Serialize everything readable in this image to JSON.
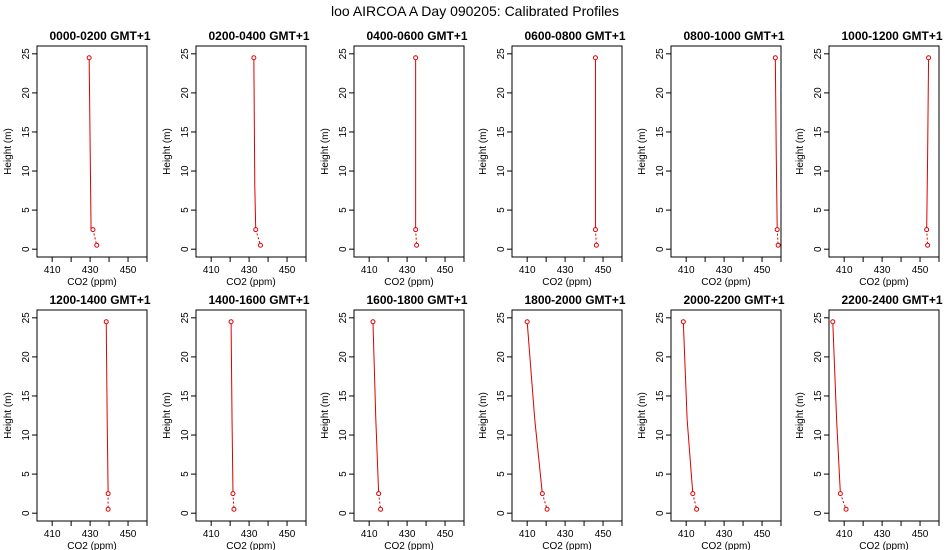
{
  "figure": {
    "title": "loo AIRCOA A  Day 090205: Calibrated Profiles"
  },
  "chart_data": [
    {
      "type": "line",
      "title": "0000-0200 GMT+1",
      "xlabel": "CO2 (ppm)",
      "ylabel": "Height (m)",
      "xlim": [
        402,
        460
      ],
      "ylim": [
        -1,
        26
      ],
      "xticks": [
        410,
        430,
        450
      ],
      "yticks": [
        0,
        5,
        10,
        15,
        20,
        25
      ],
      "series": [
        {
          "x": [
            429.5,
            430.5,
            431.5,
            433.5
          ],
          "y": [
            24.5,
            2.5,
            2.5,
            0.5
          ]
        }
      ]
    },
    {
      "type": "line",
      "title": "0200-0400 GMT+1",
      "xlabel": "CO2 (ppm)",
      "ylabel": "Height (m)",
      "xlim": [
        402,
        460
      ],
      "ylim": [
        -1,
        26
      ],
      "xticks": [
        410,
        430,
        450
      ],
      "yticks": [
        0,
        5,
        10,
        15,
        20,
        25
      ],
      "series": [
        {
          "x": [
            432.5,
            433,
            433.5,
            436
          ],
          "y": [
            24.5,
            8,
            2.5,
            0.5
          ]
        }
      ]
    },
    {
      "type": "line",
      "title": "0400-0600 GMT+1",
      "xlabel": "CO2 (ppm)",
      "ylabel": "Height (m)",
      "xlim": [
        402,
        460
      ],
      "ylim": [
        -1,
        26
      ],
      "xticks": [
        410,
        430,
        450
      ],
      "yticks": [
        0,
        5,
        10,
        15,
        20,
        25
      ],
      "series": [
        {
          "x": [
            434.5,
            434.5,
            434.5,
            435
          ],
          "y": [
            24.5,
            12,
            2.5,
            0.5
          ]
        }
      ]
    },
    {
      "type": "line",
      "title": "0600-0800 GMT+1",
      "xlabel": "CO2 (ppm)",
      "ylabel": "Height (m)",
      "xlim": [
        402,
        460
      ],
      "ylim": [
        -1,
        26
      ],
      "xticks": [
        410,
        430,
        450
      ],
      "yticks": [
        0,
        5,
        10,
        15,
        20,
        25
      ],
      "series": [
        {
          "x": [
            446,
            446,
            446,
            446.5
          ],
          "y": [
            24.5,
            12,
            2.5,
            0.5
          ]
        }
      ]
    },
    {
      "type": "line",
      "title": "0800-1000 GMT+1",
      "xlabel": "CO2 (ppm)",
      "ylabel": "Height (m)",
      "xlim": [
        402,
        460
      ],
      "ylim": [
        -1,
        26
      ],
      "xticks": [
        410,
        430,
        450
      ],
      "yticks": [
        0,
        5,
        10,
        15,
        20,
        25
      ],
      "series": [
        {
          "x": [
            457,
            457.5,
            458,
            458.5
          ],
          "y": [
            24.5,
            12,
            2.5,
            0.5
          ]
        }
      ]
    },
    {
      "type": "line",
      "title": "1000-1200 GMT+1",
      "xlabel": "CO2 (ppm)",
      "ylabel": "Height (m)",
      "xlim": [
        402,
        460
      ],
      "ylim": [
        -1,
        26
      ],
      "xticks": [
        410,
        430,
        450
      ],
      "yticks": [
        0,
        5,
        10,
        15,
        20,
        25
      ],
      "series": [
        {
          "x": [
            454.5,
            454,
            453.5,
            454
          ],
          "y": [
            24.5,
            12,
            2.5,
            0.5
          ]
        }
      ]
    },
    {
      "type": "line",
      "title": "1200-1400 GMT+1",
      "xlabel": "CO2 (ppm)",
      "ylabel": "Height (m)",
      "xlim": [
        402,
        460
      ],
      "ylim": [
        -1,
        26
      ],
      "xticks": [
        410,
        430,
        450
      ],
      "yticks": [
        0,
        5,
        10,
        15,
        20,
        25
      ],
      "series": [
        {
          "x": [
            438.5,
            439,
            439.5,
            439.5
          ],
          "y": [
            24.5,
            12,
            2.5,
            0.5
          ]
        }
      ]
    },
    {
      "type": "line",
      "title": "1400-1600 GMT+1",
      "xlabel": "CO2 (ppm)",
      "ylabel": "Height (m)",
      "xlim": [
        402,
        460
      ],
      "ylim": [
        -1,
        26
      ],
      "xticks": [
        410,
        430,
        450
      ],
      "yticks": [
        0,
        5,
        10,
        15,
        20,
        25
      ],
      "series": [
        {
          "x": [
            420.5,
            421,
            421.5,
            422
          ],
          "y": [
            24.5,
            12,
            2.5,
            0.5
          ]
        }
      ]
    },
    {
      "type": "line",
      "title": "1600-1800 GMT+1",
      "xlabel": "CO2 (ppm)",
      "ylabel": "Height (m)",
      "xlim": [
        402,
        460
      ],
      "ylim": [
        -1,
        26
      ],
      "xticks": [
        410,
        430,
        450
      ],
      "yticks": [
        0,
        5,
        10,
        15,
        20,
        25
      ],
      "series": [
        {
          "x": [
            412,
            413.5,
            415,
            416
          ],
          "y": [
            24.5,
            12,
            2.5,
            0.5
          ]
        }
      ]
    },
    {
      "type": "line",
      "title": "1800-2000 GMT+1",
      "xlabel": "CO2 (ppm)",
      "ylabel": "Height (m)",
      "xlim": [
        402,
        460
      ],
      "ylim": [
        -1,
        26
      ],
      "xticks": [
        410,
        430,
        450
      ],
      "yticks": [
        0,
        5,
        10,
        15,
        20,
        25
      ],
      "series": [
        {
          "x": [
            410,
            414,
            418,
            420.5
          ],
          "y": [
            24.5,
            12,
            2.5,
            0.5
          ]
        }
      ]
    },
    {
      "type": "line",
      "title": "2000-2200 GMT+1",
      "xlabel": "CO2 (ppm)",
      "ylabel": "Height (m)",
      "xlim": [
        402,
        460
      ],
      "ylim": [
        -1,
        26
      ],
      "xticks": [
        410,
        430,
        450
      ],
      "yticks": [
        0,
        5,
        10,
        15,
        20,
        25
      ],
      "series": [
        {
          "x": [
            408.5,
            410.5,
            413.5,
            415.5
          ],
          "y": [
            24.5,
            12,
            2.5,
            0.5
          ]
        }
      ]
    },
    {
      "type": "line",
      "title": "2200-2400 GMT+1",
      "xlabel": "CO2 (ppm)",
      "ylabel": "Height (m)",
      "xlim": [
        402,
        460
      ],
      "ylim": [
        -1,
        26
      ],
      "xticks": [
        410,
        430,
        450
      ],
      "yticks": [
        0,
        5,
        10,
        15,
        20,
        25
      ],
      "series": [
        {
          "x": [
            404,
            406,
            408,
            411
          ],
          "y": [
            24.5,
            12,
            2.5,
            0.5
          ]
        }
      ]
    }
  ],
  "colors": {
    "line": "#dd0000",
    "axis": "#000000",
    "background": "#ffffff"
  }
}
